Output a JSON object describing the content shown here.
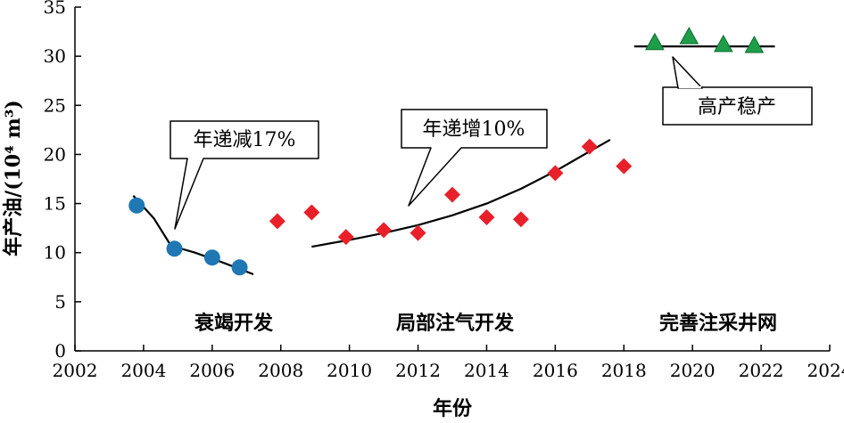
{
  "chart_data": {
    "type": "scatter",
    "title": "",
    "xlabel": "年份",
    "ylabel": "年产油/(10⁴ m³)",
    "xlim": [
      2002,
      2024
    ],
    "ylim": [
      0,
      35
    ],
    "x_ticks": [
      2002,
      2004,
      2006,
      2008,
      2010,
      2012,
      2014,
      2016,
      2018,
      2020,
      2022,
      2024
    ],
    "y_ticks": [
      0,
      5,
      10,
      15,
      20,
      25,
      30,
      35
    ],
    "grid": false,
    "series": [
      {
        "marker": "circle",
        "color": "#1f77b4",
        "points": [
          {
            "x": 2003.8,
            "y": 14.8
          },
          {
            "x": 2004.9,
            "y": 10.4
          },
          {
            "x": 2006.0,
            "y": 9.5
          },
          {
            "x": 2006.8,
            "y": 8.5
          }
        ]
      },
      {
        "marker": "diamond",
        "color": "#e8202a",
        "points": [
          {
            "x": 2007.9,
            "y": 13.2
          },
          {
            "x": 2008.9,
            "y": 14.1
          },
          {
            "x": 2009.9,
            "y": 11.6
          },
          {
            "x": 2011.0,
            "y": 12.3
          },
          {
            "x": 2012.0,
            "y": 12.0
          },
          {
            "x": 2013.0,
            "y": 15.9
          },
          {
            "x": 2014.0,
            "y": 13.6
          },
          {
            "x": 2015.0,
            "y": 13.4
          },
          {
            "x": 2016.0,
            "y": 18.1
          },
          {
            "x": 2017.0,
            "y": 20.8
          },
          {
            "x": 2018.0,
            "y": 18.8
          }
        ]
      },
      {
        "marker": "triangle",
        "color": "#1f9e4a",
        "points": [
          {
            "x": 2018.9,
            "y": 31.4
          },
          {
            "x": 2019.9,
            "y": 32.0
          },
          {
            "x": 2020.9,
            "y": 31.2
          },
          {
            "x": 2021.8,
            "y": 31.1
          }
        ]
      }
    ],
    "trend_lines": [
      {
        "points": [
          [
            2003.7,
            15.8
          ],
          [
            2004.3,
            13.5
          ],
          [
            2004.8,
            10.7
          ],
          [
            2005.5,
            10.0
          ],
          [
            2006.3,
            9.0
          ],
          [
            2007.2,
            7.8
          ]
        ]
      },
      {
        "points": [
          [
            2008.9,
            10.6
          ],
          [
            2010,
            11.3
          ],
          [
            2011,
            12.0
          ],
          [
            2012,
            12.8
          ],
          [
            2013,
            13.8
          ],
          [
            2014,
            15.0
          ],
          [
            2015,
            16.5
          ],
          [
            2016,
            18.3
          ],
          [
            2017,
            20.3
          ],
          [
            2017.6,
            21.5
          ]
        ]
      },
      {
        "points": [
          [
            2018.3,
            31.0
          ],
          [
            2022.4,
            31.0
          ]
        ]
      }
    ],
    "annotations": {
      "phases": [
        "衰竭开发",
        "局部注气开发",
        "完善注采井网"
      ],
      "callouts": [
        "年递减17%",
        "年递增10%",
        "高产稳产"
      ]
    }
  }
}
